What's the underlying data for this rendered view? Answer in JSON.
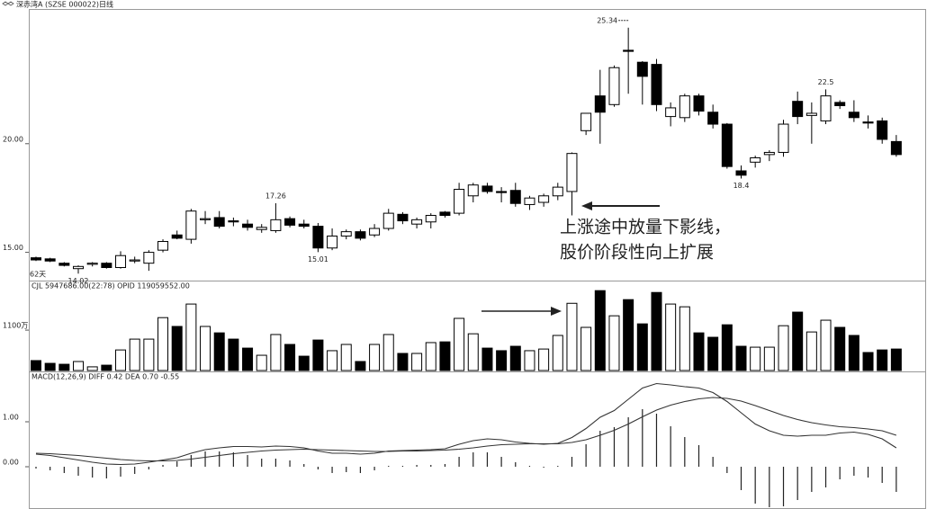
{
  "chart_data": [
    {
      "type": "candlestick",
      "title": "深赤湾A (SZSE 000022)日线",
      "period_label": "62天",
      "annotations": [
        "上涨途中放量下影线，",
        "股价阶段性向上扩展"
      ],
      "up_color": "#ffffff",
      "down_color": "#000000",
      "open": [
        14.75,
        14.7,
        14.5,
        14.25,
        14.45,
        14.5,
        14.3,
        14.6,
        14.5,
        15.1,
        15.8,
        15.6,
        16.5,
        16.6,
        16.45,
        16.3,
        16.05,
        16.0,
        16.55,
        16.3,
        16.2,
        15.2,
        15.75,
        15.95,
        15.8,
        16.1,
        16.75,
        16.3,
        16.4,
        16.85,
        16.8,
        17.6,
        18.05,
        17.8,
        17.85,
        17.2,
        17.3,
        17.6,
        17.8,
        20.6,
        22.2,
        21.8,
        24.3,
        23.75,
        23.65,
        21.25,
        21.2,
        22.2,
        21.45,
        20.9,
        18.75,
        19.15,
        19.5,
        19.6,
        21.95,
        21.3,
        21.05,
        21.9,
        21.45,
        21.0,
        21.05,
        20.1
      ],
      "high": [
        14.8,
        14.75,
        14.55,
        14.4,
        14.55,
        14.55,
        15.05,
        14.8,
        15.1,
        15.6,
        16.0,
        17.0,
        16.9,
        16.9,
        16.6,
        16.5,
        16.3,
        17.26,
        16.65,
        16.5,
        16.35,
        16.1,
        16.05,
        16.05,
        16.3,
        17.0,
        16.85,
        16.6,
        16.8,
        16.9,
        18.2,
        18.2,
        18.2,
        18.0,
        18.2,
        17.6,
        17.7,
        18.2,
        19.6,
        21.4,
        23.4,
        23.6,
        25.34,
        23.8,
        23.9,
        21.9,
        22.3,
        22.3,
        21.8,
        20.95,
        19.0,
        19.45,
        19.7,
        21.1,
        22.4,
        21.9,
        22.5,
        22.0,
        22.0,
        21.3,
        21.2,
        20.4
      ],
      "low": [
        14.6,
        14.55,
        14.35,
        14.02,
        14.35,
        14.25,
        14.25,
        14.5,
        14.15,
        15.0,
        15.6,
        15.4,
        16.3,
        16.1,
        16.2,
        16.0,
        15.9,
        15.9,
        16.15,
        16.1,
        15.01,
        15.1,
        15.6,
        15.55,
        15.7,
        16.0,
        16.3,
        16.1,
        16.1,
        16.6,
        16.7,
        17.3,
        17.7,
        17.3,
        17.1,
        16.95,
        17.1,
        17.4,
        16.7,
        20.4,
        20.0,
        21.7,
        22.3,
        21.8,
        21.5,
        20.8,
        21.0,
        21.3,
        20.7,
        18.85,
        18.4,
        18.9,
        19.2,
        19.4,
        20.9,
        20.0,
        20.9,
        21.6,
        21.0,
        20.7,
        20.0,
        19.4
      ],
      "close": [
        14.65,
        14.6,
        14.4,
        14.35,
        14.5,
        14.3,
        14.85,
        14.65,
        15.0,
        15.5,
        15.65,
        16.9,
        16.55,
        16.2,
        16.4,
        16.15,
        16.15,
        16.5,
        16.25,
        16.2,
        15.2,
        15.75,
        15.95,
        15.65,
        16.1,
        16.8,
        16.45,
        16.5,
        16.7,
        16.7,
        17.9,
        18.1,
        17.8,
        17.75,
        17.25,
        17.5,
        17.6,
        18.0,
        19.55,
        21.4,
        21.45,
        23.5,
        24.25,
        23.1,
        21.8,
        21.65,
        22.2,
        21.5,
        20.9,
        18.95,
        18.55,
        19.35,
        19.6,
        20.9,
        21.25,
        21.4,
        22.2,
        21.75,
        21.2,
        20.95,
        20.2,
        19.5
      ],
      "ylim": [
        13.7,
        26.2
      ],
      "yticks": [
        {
          "value": 15,
          "label": "15.00"
        },
        {
          "value": 20,
          "label": "20.00"
        }
      ]
    },
    {
      "type": "bar",
      "title": "CJL  5947686.00(22:78)  OPID  119059552.00",
      "values": [
        270,
        195,
        170,
        245,
        100,
        145,
        560,
        855,
        855,
        1440,
        1200,
        1810,
        1200,
        1025,
        855,
        610,
        415,
        980,
        710,
        390,
        830,
        540,
        710,
        245,
        710,
        980,
        465,
        465,
        760,
        780,
        1420,
        1000,
        610,
        540,
        660,
        540,
        585,
        955,
        1830,
        1175,
        2175,
        1490,
        1930,
        1270,
        2125,
        1810,
        1735,
        1025,
        905,
        1245,
        660,
        635,
        635,
        1220,
        1590,
        1050,
        1370,
        1175,
        955,
        490,
        560,
        585
      ],
      "ylim": [
        0,
        2400
      ],
      "yticks": [
        {
          "value": 1100,
          "label": "1100万"
        }
      ]
    },
    {
      "type": "macd",
      "title": "MACD(12,26,9)  DIFF  0.42  DEA  0.70  -0.55",
      "series": [
        {
          "color": "#333333",
          "values": [
            0.28,
            0.25,
            0.2,
            0.15,
            0.1,
            0.06,
            0.05,
            0.06,
            0.1,
            0.15,
            0.2,
            0.3,
            0.38,
            0.42,
            0.45,
            0.45,
            0.44,
            0.46,
            0.45,
            0.42,
            0.35,
            0.3,
            0.3,
            0.28,
            0.3,
            0.35,
            0.36,
            0.37,
            0.38,
            0.4,
            0.5,
            0.58,
            0.62,
            0.6,
            0.55,
            0.52,
            0.5,
            0.52,
            0.65,
            0.85,
            1.1,
            1.25,
            1.5,
            1.75,
            1.85,
            1.82,
            1.78,
            1.75,
            1.65,
            1.45,
            1.2,
            0.95,
            0.8,
            0.7,
            0.68,
            0.7,
            0.7,
            0.75,
            0.77,
            0.72,
            0.62,
            0.42
          ]
        },
        {
          "color": "#333333",
          "values": [
            0.3,
            0.29,
            0.27,
            0.25,
            0.22,
            0.19,
            0.16,
            0.14,
            0.13,
            0.13,
            0.14,
            0.17,
            0.21,
            0.25,
            0.29,
            0.32,
            0.35,
            0.37,
            0.38,
            0.39,
            0.38,
            0.37,
            0.36,
            0.35,
            0.34,
            0.34,
            0.35,
            0.35,
            0.36,
            0.37,
            0.39,
            0.42,
            0.46,
            0.49,
            0.5,
            0.51,
            0.51,
            0.51,
            0.54,
            0.6,
            0.7,
            0.81,
            0.95,
            1.11,
            1.26,
            1.37,
            1.45,
            1.51,
            1.54,
            1.52,
            1.46,
            1.36,
            1.25,
            1.14,
            1.05,
            0.98,
            0.93,
            0.89,
            0.87,
            0.84,
            0.8,
            0.7
          ]
        }
      ],
      "histogram": [
        -0.04,
        -0.08,
        -0.14,
        -0.2,
        -0.24,
        -0.26,
        -0.22,
        -0.16,
        -0.06,
        0.04,
        0.12,
        0.26,
        0.34,
        0.34,
        0.32,
        0.26,
        0.18,
        0.18,
        0.14,
        0.06,
        -0.06,
        -0.14,
        -0.12,
        -0.14,
        -0.08,
        0.02,
        0.02,
        0.04,
        0.04,
        0.06,
        0.22,
        0.32,
        0.32,
        0.22,
        0.1,
        0.02,
        -0.02,
        0.02,
        0.22,
        0.5,
        0.8,
        0.88,
        1.1,
        1.28,
        1.18,
        0.9,
        0.66,
        0.48,
        0.22,
        -0.14,
        -0.52,
        -0.82,
        -0.9,
        -0.88,
        -0.74,
        -0.56,
        -0.46,
        -0.28,
        -0.2,
        -0.24,
        -0.36,
        -0.56
      ],
      "ylim": [
        -0.94,
        2.1
      ],
      "yticks": [
        {
          "value": 0,
          "label": "0.00"
        },
        {
          "value": 1,
          "label": "1.00"
        }
      ]
    }
  ]
}
